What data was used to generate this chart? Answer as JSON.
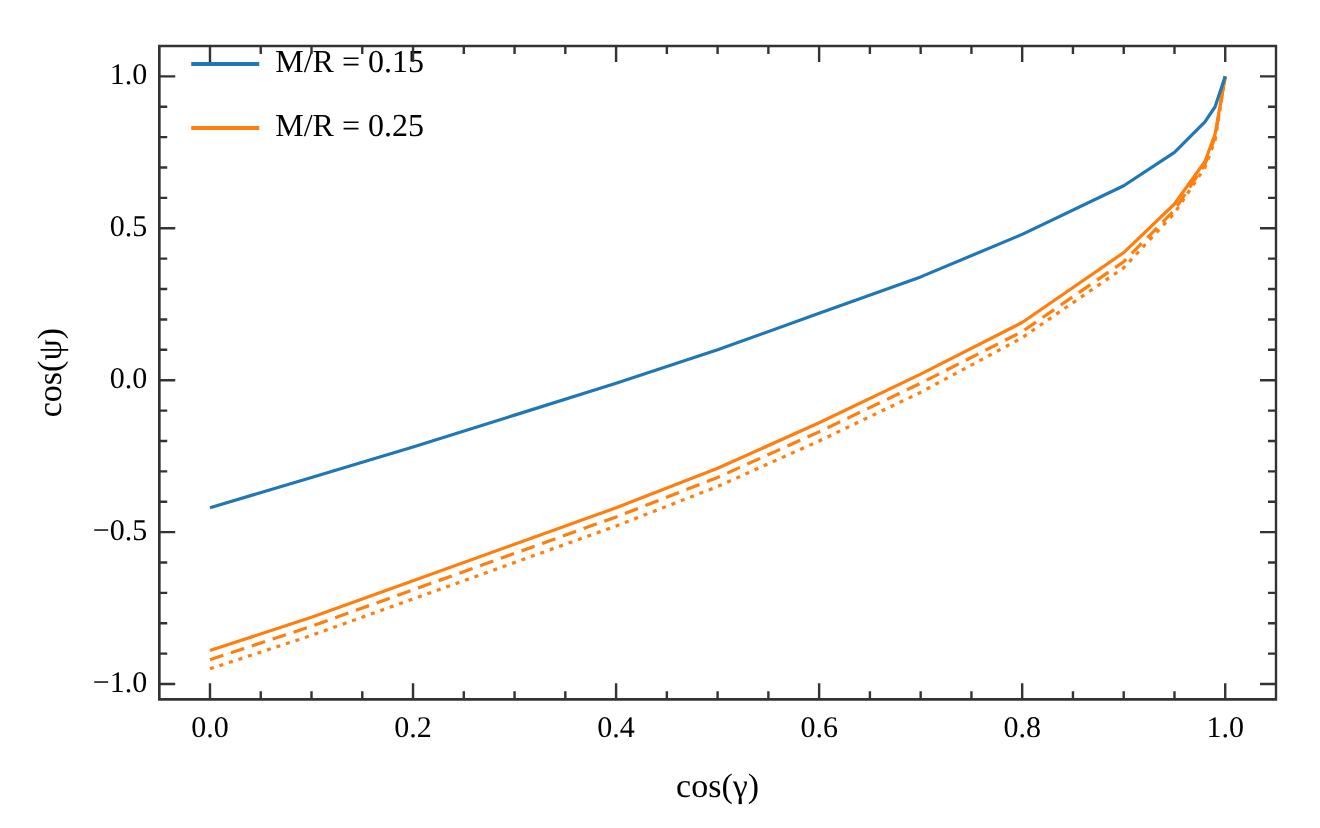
{
  "chart_data": {
    "type": "line",
    "xlabel": "cos(γ)",
    "ylabel": "cos(ψ)",
    "x": [
      0,
      0.1,
      0.2,
      0.3,
      0.4,
      0.5,
      0.6,
      0.7,
      0.8,
      0.9,
      0.95,
      0.98,
      0.99,
      1.0
    ],
    "series": [
      {
        "name": "M/R = 0.15",
        "color": "#1f77b4",
        "line_style": "solid",
        "values": [
          -0.42,
          -0.32,
          -0.22,
          -0.115,
          -0.01,
          0.1,
          0.22,
          0.34,
          0.48,
          0.64,
          0.75,
          0.85,
          0.9,
          1.0
        ]
      },
      {
        "name": "M/R = 0.25",
        "color": "#ff7f0e",
        "line_style": "solid",
        "values": [
          -0.89,
          -0.78,
          -0.66,
          -0.54,
          -0.42,
          -0.29,
          -0.14,
          0.02,
          0.19,
          0.42,
          0.58,
          0.72,
          0.81,
          1.0
        ]
      },
      {
        "color": "#ff7f0e",
        "line_style": "dashed",
        "values": [
          -0.92,
          -0.81,
          -0.69,
          -0.57,
          -0.45,
          -0.32,
          -0.17,
          -0.01,
          0.16,
          0.39,
          0.56,
          0.71,
          0.8,
          1.0
        ]
      },
      {
        "color": "#ff7f0e",
        "line_style": "dotted",
        "values": [
          -0.95,
          -0.84,
          -0.72,
          -0.6,
          -0.48,
          -0.35,
          -0.2,
          -0.04,
          0.14,
          0.37,
          0.55,
          0.7,
          0.79,
          1.0
        ]
      }
    ],
    "xlim": [
      -0.05,
      1.05
    ],
    "ylim": [
      -1.05,
      1.1
    ],
    "xticks": [
      {
        "value": 0,
        "label": "0.0"
      },
      {
        "value": 0.05,
        "label": null
      },
      {
        "value": 0.1,
        "label": null
      },
      {
        "value": 0.15,
        "label": null
      },
      {
        "value": 0.2,
        "label": "0.2"
      },
      {
        "value": 0.25,
        "label": null
      },
      {
        "value": 0.3,
        "label": null
      },
      {
        "value": 0.35,
        "label": null
      },
      {
        "value": 0.4,
        "label": "0.4"
      },
      {
        "value": 0.45,
        "label": null
      },
      {
        "value": 0.5,
        "label": null
      },
      {
        "value": 0.55,
        "label": null
      },
      {
        "value": 0.6,
        "label": "0.6"
      },
      {
        "value": 0.65,
        "label": null
      },
      {
        "value": 0.7,
        "label": null
      },
      {
        "value": 0.75,
        "label": null
      },
      {
        "value": 0.8,
        "label": "0.8"
      },
      {
        "value": 0.85,
        "label": null
      },
      {
        "value": 0.9,
        "label": null
      },
      {
        "value": 0.95,
        "label": null
      },
      {
        "value": 1.0,
        "label": "1.0"
      }
    ],
    "yticks": [
      {
        "value": -1.0,
        "label": "−1.0"
      },
      {
        "value": -0.9,
        "label": null
      },
      {
        "value": -0.8,
        "label": null
      },
      {
        "value": -0.7,
        "label": null
      },
      {
        "value": -0.6,
        "label": null
      },
      {
        "value": -0.5,
        "label": "−0.5"
      },
      {
        "value": -0.4,
        "label": null
      },
      {
        "value": -0.3,
        "label": null
      },
      {
        "value": -0.2,
        "label": null
      },
      {
        "value": -0.1,
        "label": null
      },
      {
        "value": 0,
        "label": "0.0"
      },
      {
        "value": 0.1,
        "label": null
      },
      {
        "value": 0.2,
        "label": null
      },
      {
        "value": 0.3,
        "label": null
      },
      {
        "value": 0.4,
        "label": null
      },
      {
        "value": 0.5,
        "label": "0.5"
      },
      {
        "value": 0.6,
        "label": null
      },
      {
        "value": 0.7,
        "label": null
      },
      {
        "value": 0.8,
        "label": null
      },
      {
        "value": 0.9,
        "label": null
      },
      {
        "value": 1.0,
        "label": "1.0"
      }
    ],
    "grid": false,
    "legend": "top left",
    "marker": "none"
  }
}
